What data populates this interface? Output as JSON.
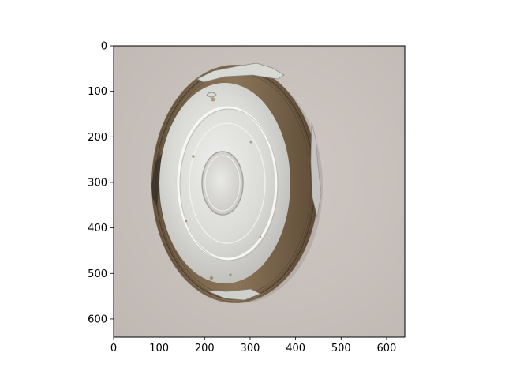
{
  "figure": {
    "image_subject": "crumpled foil pie tin on a wall",
    "background_color": "#c9c2bd",
    "x_axis": {
      "range": [
        0,
        640
      ],
      "ticks": [
        {
          "value": 0,
          "label": "0"
        },
        {
          "value": 100,
          "label": "100"
        },
        {
          "value": 200,
          "label": "200"
        },
        {
          "value": 300,
          "label": "300"
        },
        {
          "value": 400,
          "label": "400"
        },
        {
          "value": 500,
          "label": "500"
        },
        {
          "value": 600,
          "label": "600"
        }
      ]
    },
    "y_axis": {
      "range": [
        0,
        640
      ],
      "inverted": true,
      "ticks": [
        {
          "value": 0,
          "label": "0"
        },
        {
          "value": 100,
          "label": "100"
        },
        {
          "value": 200,
          "label": "200"
        },
        {
          "value": 300,
          "label": "300"
        },
        {
          "value": 400,
          "label": "400"
        },
        {
          "value": 500,
          "label": "500"
        },
        {
          "value": 600,
          "label": "600"
        }
      ]
    }
  }
}
